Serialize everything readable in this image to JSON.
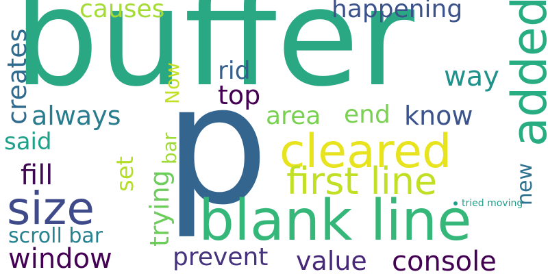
{
  "words": [
    {
      "id": "buffer",
      "text": "buffer",
      "color": "#2aa783",
      "weight": 1.0,
      "orientation": "horizontal"
    },
    {
      "id": "p",
      "text": "p",
      "color": "#33658e",
      "weight": 0.95,
      "orientation": "horizontal"
    },
    {
      "id": "added",
      "text": "added",
      "color": "#27ad81",
      "weight": 0.55,
      "orientation": "vertical"
    },
    {
      "id": "blank-line",
      "text": "blank line",
      "color": "#35b779",
      "weight": 0.6,
      "orientation": "horizontal"
    },
    {
      "id": "cleared",
      "text": "cleared",
      "color": "#e7e31f",
      "weight": 0.5,
      "orientation": "horizontal"
    },
    {
      "id": "first-line",
      "text": "first line",
      "color": "#c0df25",
      "weight": 0.4,
      "orientation": "horizontal"
    },
    {
      "id": "size",
      "text": "size",
      "color": "#3e4a89",
      "weight": 0.5,
      "orientation": "horizontal"
    },
    {
      "id": "creates",
      "text": "creates",
      "color": "#2f6b8e",
      "weight": 0.28,
      "orientation": "vertical"
    },
    {
      "id": "causes",
      "text": "causes",
      "color": "#a5db36",
      "weight": 0.26,
      "orientation": "horizontal"
    },
    {
      "id": "happening",
      "text": "happening",
      "color": "#3b528b",
      "weight": 0.26,
      "orientation": "horizontal"
    },
    {
      "id": "rid",
      "text": "rid",
      "color": "#355f8d",
      "weight": 0.27,
      "orientation": "horizontal"
    },
    {
      "id": "now",
      "text": "Now",
      "color": "#c2df23",
      "weight": 0.22,
      "orientation": "vertical"
    },
    {
      "id": "way",
      "text": "way",
      "color": "#21918c",
      "weight": 0.28,
      "orientation": "horizontal"
    },
    {
      "id": "top",
      "text": "top",
      "color": "#440154",
      "weight": 0.27,
      "orientation": "horizontal"
    },
    {
      "id": "always",
      "text": "always",
      "color": "#287c8e",
      "weight": 0.27,
      "orientation": "horizontal"
    },
    {
      "id": "area",
      "text": "area",
      "color": "#7ad151",
      "weight": 0.27,
      "orientation": "horizontal"
    },
    {
      "id": "end",
      "text": "end",
      "color": "#7ad151",
      "weight": 0.27,
      "orientation": "horizontal"
    },
    {
      "id": "know",
      "text": "know",
      "color": "#3b528b",
      "weight": 0.28,
      "orientation": "horizontal"
    },
    {
      "id": "said",
      "text": "said",
      "color": "#1fa088",
      "weight": 0.25,
      "orientation": "horizontal"
    },
    {
      "id": "bar",
      "text": "bar",
      "color": "#a0da39",
      "weight": 0.2,
      "orientation": "vertical"
    },
    {
      "id": "set",
      "text": "set",
      "color": "#b5de2b",
      "weight": 0.25,
      "orientation": "vertical"
    },
    {
      "id": "trying",
      "text": "trying",
      "color": "#6ccd5a",
      "weight": 0.28,
      "orientation": "vertical"
    },
    {
      "id": "fill",
      "text": "fill",
      "color": "#3e0853",
      "weight": 0.28,
      "orientation": "horizontal"
    },
    {
      "id": "new",
      "text": "new",
      "color": "#2c728e",
      "weight": 0.22,
      "orientation": "vertical"
    },
    {
      "id": "tried-moving",
      "text": "tried moving",
      "color": "#1f9e89",
      "weight": 0.1,
      "orientation": "horizontal"
    },
    {
      "id": "scroll-bar",
      "text": "scroll bar",
      "color": "#26828e",
      "weight": 0.23,
      "orientation": "horizontal"
    },
    {
      "id": "window",
      "text": "window",
      "color": "#440154",
      "weight": 0.3,
      "orientation": "horizontal"
    },
    {
      "id": "prevent",
      "text": "prevent",
      "color": "#46337e",
      "weight": 0.28,
      "orientation": "horizontal"
    },
    {
      "id": "value",
      "text": "value",
      "color": "#482878",
      "weight": 0.28,
      "orientation": "horizontal"
    },
    {
      "id": "console",
      "text": "console",
      "color": "#440154",
      "weight": 0.3,
      "orientation": "horizontal"
    }
  ],
  "dot_color": "#1f9e89"
}
